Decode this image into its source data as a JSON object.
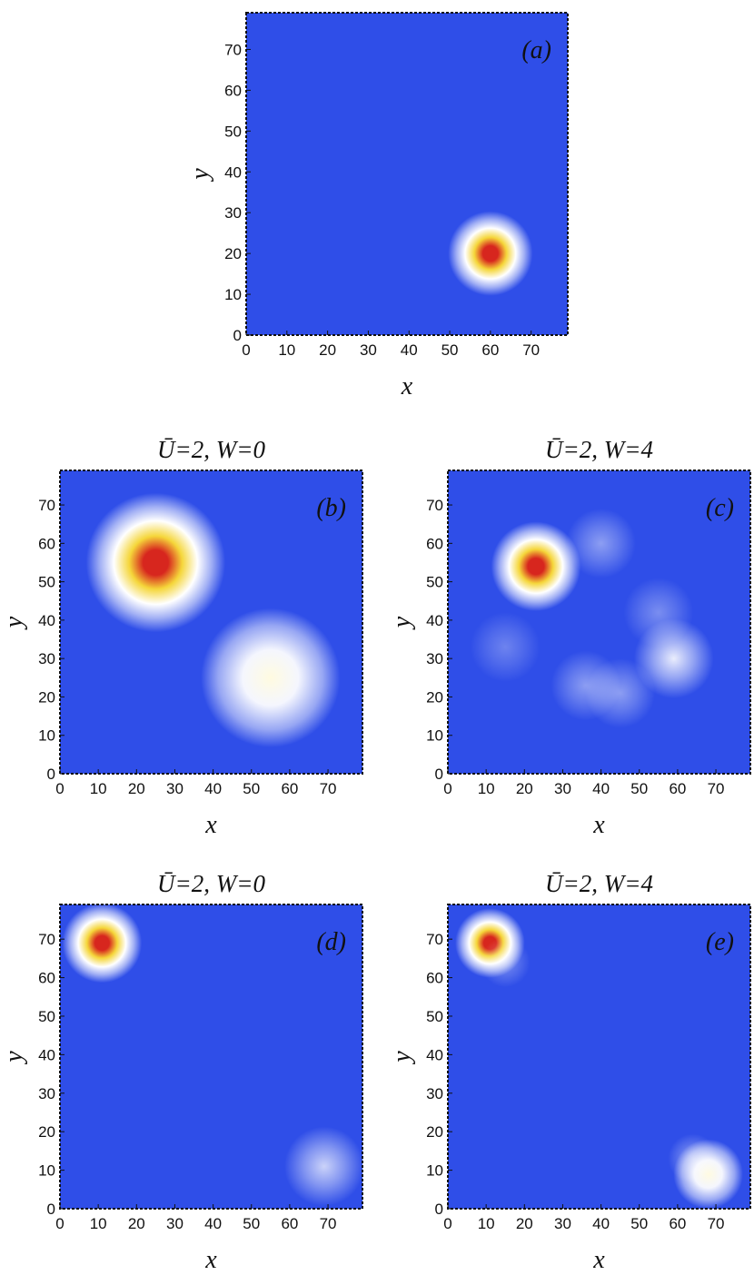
{
  "chart_data": [
    {
      "id": "a",
      "type": "heatmap",
      "panel_label": "(a)",
      "title": "",
      "xlabel": "x",
      "ylabel": "y",
      "xlim": [
        0,
        79
      ],
      "ylim": [
        0,
        79
      ],
      "xticks": [
        0,
        10,
        20,
        30,
        40,
        50,
        60,
        70
      ],
      "yticks": [
        0,
        10,
        20,
        30,
        40,
        50,
        60,
        70
      ],
      "colormap": [
        "#2f4ee8",
        "#ffffff",
        "#f5d63a",
        "#d7261e"
      ],
      "peaks": [
        {
          "x": 60,
          "y": 20,
          "width": 4,
          "amplitude": 1.0
        }
      ]
    },
    {
      "id": "b",
      "type": "heatmap",
      "panel_label": "(b)",
      "title": "Ū=2, W=0",
      "xlabel": "x",
      "ylabel": "y",
      "xlim": [
        0,
        79
      ],
      "ylim": [
        0,
        79
      ],
      "xticks": [
        0,
        10,
        20,
        30,
        40,
        50,
        60,
        70
      ],
      "yticks": [
        0,
        10,
        20,
        30,
        40,
        50,
        60,
        70
      ],
      "colormap": [
        "#2f4ee8",
        "#ffffff",
        "#f5d63a",
        "#d7261e"
      ],
      "peaks": [
        {
          "x": 25,
          "y": 55,
          "width": 7,
          "amplitude": 0.95
        },
        {
          "x": 55,
          "y": 25,
          "width": 7,
          "amplitude": 0.45
        }
      ]
    },
    {
      "id": "c",
      "type": "heatmap",
      "panel_label": "(c)",
      "title": "Ū=2, W=4",
      "xlabel": "x",
      "ylabel": "y",
      "xlim": [
        0,
        79
      ],
      "ylim": [
        0,
        79
      ],
      "xticks": [
        0,
        10,
        20,
        30,
        40,
        50,
        60,
        70
      ],
      "yticks": [
        0,
        10,
        20,
        30,
        40,
        50,
        60,
        70
      ],
      "colormap": [
        "#2f4ee8",
        "#ffffff",
        "#f5d63a",
        "#d7261e"
      ],
      "peaks": [
        {
          "x": 23,
          "y": 54,
          "width": 4.5,
          "amplitude": 0.95
        },
        {
          "x": 59,
          "y": 30,
          "width": 4,
          "amplitude": 0.3
        },
        {
          "x": 36,
          "y": 23,
          "width": 3.5,
          "amplitude": 0.15
        },
        {
          "x": 45,
          "y": 21,
          "width": 3.5,
          "amplitude": 0.15
        },
        {
          "x": 40,
          "y": 60,
          "width": 3.5,
          "amplitude": 0.15
        },
        {
          "x": 15,
          "y": 33,
          "width": 3.5,
          "amplitude": 0.1
        },
        {
          "x": 55,
          "y": 42,
          "width": 3.5,
          "amplitude": 0.12
        }
      ]
    },
    {
      "id": "d",
      "type": "heatmap",
      "panel_label": "(d)",
      "title": "Ū=2, W=0",
      "xlabel": "x",
      "ylabel": "y",
      "xlim": [
        0,
        79
      ],
      "ylim": [
        0,
        79
      ],
      "xticks": [
        0,
        10,
        20,
        30,
        40,
        50,
        60,
        70
      ],
      "yticks": [
        0,
        10,
        20,
        30,
        40,
        50,
        60,
        70
      ],
      "colormap": [
        "#2f4ee8",
        "#ffffff",
        "#f5d63a",
        "#d7261e"
      ],
      "peaks": [
        {
          "x": 11,
          "y": 69,
          "width": 4,
          "amplitude": 0.95
        },
        {
          "x": 69,
          "y": 11,
          "width": 4,
          "amplitude": 0.25
        }
      ]
    },
    {
      "id": "e",
      "type": "heatmap",
      "panel_label": "(e)",
      "title": "Ū=2, W=4",
      "xlabel": "x",
      "ylabel": "y",
      "xlim": [
        0,
        79
      ],
      "ylim": [
        0,
        79
      ],
      "xticks": [
        0,
        10,
        20,
        30,
        40,
        50,
        60,
        70
      ],
      "yticks": [
        0,
        10,
        20,
        30,
        40,
        50,
        60,
        70
      ],
      "colormap": [
        "#2f4ee8",
        "#ffffff",
        "#f5d63a",
        "#d7261e"
      ],
      "peaks": [
        {
          "x": 11,
          "y": 69,
          "width": 3.5,
          "amplitude": 0.95
        },
        {
          "x": 68,
          "y": 9,
          "width": 3.5,
          "amplitude": 0.4
        },
        {
          "x": 15,
          "y": 64,
          "width": 2.5,
          "amplitude": 0.12
        },
        {
          "x": 64,
          "y": 13,
          "width": 2.5,
          "amplitude": 0.15
        }
      ]
    }
  ]
}
